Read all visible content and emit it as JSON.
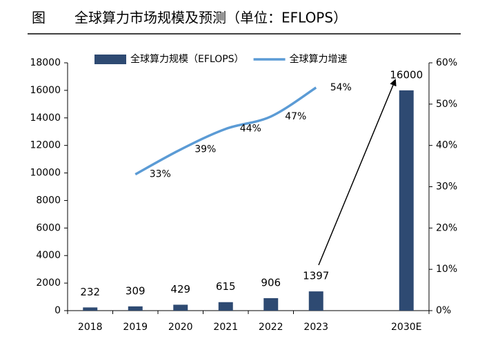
{
  "chart_data": {
    "type": "bar_line",
    "figure_label": "图",
    "title": "全球算力市场规模及预测（单位：EFLOPS）",
    "categories": [
      "2018",
      "2019",
      "2020",
      "2021",
      "2022",
      "2023",
      null,
      "2030E"
    ],
    "series": [
      {
        "name": "全球算力规模（EFLOPS）",
        "type": "bar",
        "color": "#2e4a72",
        "values": [
          232,
          309,
          429,
          615,
          906,
          1397,
          null,
          16000
        ]
      },
      {
        "name": "全球算力增速",
        "type": "line",
        "axis": "y2",
        "color": "#5b9bd5",
        "values": [
          null,
          33,
          39,
          44,
          47,
          54,
          null,
          null
        ],
        "value_labels": [
          null,
          "33%",
          "39%",
          "44%",
          "47%",
          "54%",
          null,
          null
        ]
      }
    ],
    "ylim": [
      0,
      18000
    ],
    "yticks": [
      0,
      2000,
      4000,
      6000,
      8000,
      10000,
      12000,
      14000,
      16000,
      18000
    ],
    "y2lim": [
      0,
      60
    ],
    "y2ticks": [
      {
        "value": 0,
        "label": "0%"
      },
      {
        "value": 10,
        "label": "10%"
      },
      {
        "value": 20,
        "label": "20%"
      },
      {
        "value": 30,
        "label": "30%"
      },
      {
        "value": 40,
        "label": "40%"
      },
      {
        "value": 50,
        "label": "50%"
      },
      {
        "value": 60,
        "label": "60%"
      }
    ],
    "legend": "top"
  }
}
